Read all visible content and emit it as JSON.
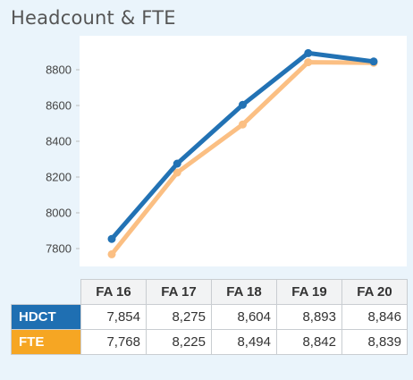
{
  "title": "Headcount & FTE",
  "colors": {
    "hdct": "#2272b4",
    "fte": "#fbbf83",
    "hdct_label_bg": "#1f6fb2",
    "fte_label_bg": "#f6a623",
    "background": "#eaf4fb",
    "plot_background": "#ffffff"
  },
  "chart_data": {
    "type": "line",
    "title": "Headcount & FTE",
    "categories": [
      "FA 16",
      "FA 17",
      "FA 18",
      "FA 19",
      "FA 20"
    ],
    "series": [
      {
        "name": "HDCT",
        "values": [
          7854,
          8275,
          8604,
          8893,
          8846
        ]
      },
      {
        "name": "FTE",
        "values": [
          7768,
          8225,
          8494,
          8842,
          8839
        ]
      }
    ],
    "yticks": [
      7800,
      8000,
      8200,
      8400,
      8600,
      8800
    ],
    "ylim": [
      7700,
      8990
    ],
    "grid": false,
    "legend": "none (series shown in data table below)"
  },
  "table": {
    "headers": [
      "FA 16",
      "FA 17",
      "FA 18",
      "FA 19",
      "FA 20"
    ],
    "rows": [
      {
        "label": "HDCT",
        "values": [
          "7,854",
          "8,275",
          "8,604",
          "8,893",
          "8,846"
        ]
      },
      {
        "label": "FTE",
        "values": [
          "7,768",
          "8,225",
          "8,494",
          "8,842",
          "8,839"
        ]
      }
    ]
  }
}
